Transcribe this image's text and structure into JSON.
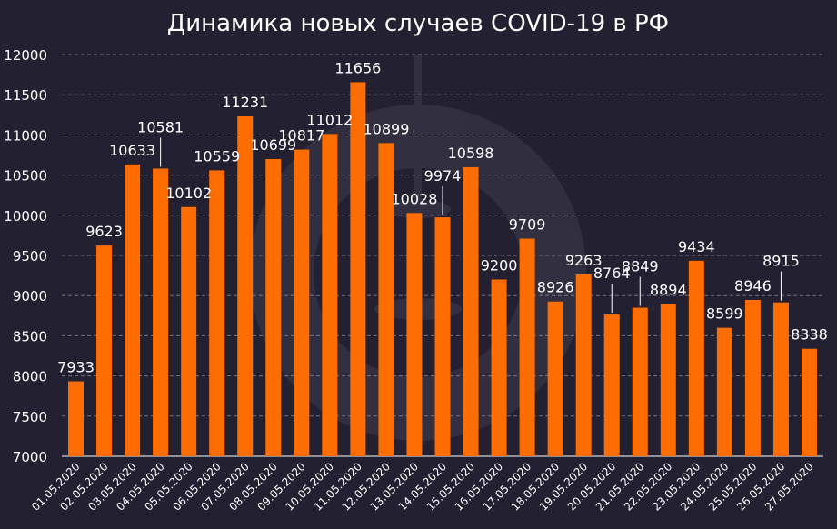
{
  "chart_data": {
    "type": "bar",
    "title": "Динамика новых случаев COVID-19 в РФ",
    "xlabel": "",
    "ylabel": "",
    "ylim": [
      7000,
      12000
    ],
    "yticks": [
      7000,
      7500,
      8000,
      8500,
      9000,
      9500,
      10000,
      10500,
      11000,
      11500,
      12000
    ],
    "grid": true,
    "legend": "none",
    "categories": [
      "01.05.2020",
      "02.05.2020",
      "03.05.2020",
      "04.05.2020",
      "05.05.2020",
      "06.05.2020",
      "07.05.2020",
      "08.05.2020",
      "09.05.2020",
      "10.05.2020",
      "11.05.2020",
      "12.05.2020",
      "13.05.2020",
      "14.05.2020",
      "15.05.2020",
      "16.05.2020",
      "17.05.2020",
      "18.05.2020",
      "19.05.2020",
      "20.05.2020",
      "21.05.2020",
      "22.05.2020",
      "23.05.2020",
      "24.05.2020",
      "25.05.2020",
      "26.05.2020",
      "27.05.2020"
    ],
    "values": [
      7933,
      9623,
      10633,
      10581,
      10102,
      10559,
      11231,
      10699,
      10817,
      11012,
      11656,
      10899,
      10028,
      9974,
      10598,
      9200,
      9709,
      8926,
      9263,
      8764,
      8849,
      8894,
      9434,
      8599,
      8946,
      8915,
      8338
    ]
  },
  "colors": {
    "background": "#222031",
    "bar": "#ff6d00",
    "grid": "#8a8898",
    "text": "#ffffff"
  }
}
